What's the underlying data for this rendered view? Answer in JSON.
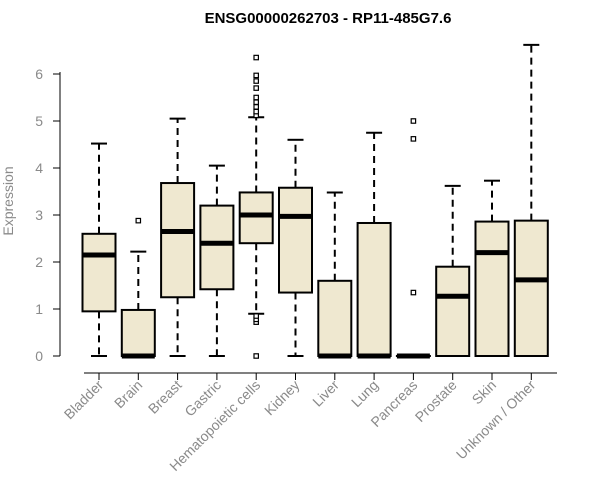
{
  "chart_data": {
    "type": "boxplot",
    "title": "ENSG00000262703 - RP11-485G7.6",
    "xlabel": "",
    "ylabel": "Expression",
    "ylim": [
      0,
      6.8
    ],
    "yticks": [
      0,
      1,
      2,
      3,
      4,
      5,
      6
    ],
    "categories": [
      "Bladder",
      "Brain",
      "Breast",
      "Gastric",
      "Hematopoietic cells",
      "Kidney",
      "Liver",
      "Lung",
      "Pancreas",
      "Prostate",
      "Skin",
      "Unknown / Other"
    ],
    "box_color": "#efe8d0",
    "boxes": [
      {
        "min": 0,
        "q1": 0.95,
        "median": 2.15,
        "q3": 2.6,
        "max": 4.52,
        "outliers": []
      },
      {
        "min": 0,
        "q1": 0,
        "median": 0,
        "q3": 0.98,
        "max": 2.22,
        "outliers": [
          2.88
        ]
      },
      {
        "min": 0,
        "q1": 1.25,
        "median": 2.65,
        "q3": 3.68,
        "max": 5.05,
        "outliers": []
      },
      {
        "min": 0,
        "q1": 1.42,
        "median": 2.4,
        "q3": 3.2,
        "max": 4.05,
        "outliers": []
      },
      {
        "min": 0.9,
        "q1": 2.4,
        "median": 3.0,
        "q3": 3.48,
        "max": 5.08,
        "outliers": [
          0,
          0.72,
          0.78,
          0.85,
          5.12,
          5.2,
          5.3,
          5.4,
          5.5,
          5.7,
          5.85,
          5.97,
          6.35
        ]
      },
      {
        "min": 0,
        "q1": 1.35,
        "median": 2.97,
        "q3": 3.58,
        "max": 4.6,
        "outliers": []
      },
      {
        "min": 0,
        "q1": 0,
        "median": 0,
        "q3": 1.6,
        "max": 3.48,
        "outliers": []
      },
      {
        "min": 0,
        "q1": 0,
        "median": 0,
        "q3": 2.83,
        "max": 4.75,
        "outliers": []
      },
      {
        "min": 0,
        "q1": 0,
        "median": 0,
        "q3": 0,
        "max": 0,
        "outliers": [
          1.35,
          4.62,
          5.0
        ]
      },
      {
        "min": 0,
        "q1": 0,
        "median": 1.27,
        "q3": 1.9,
        "max": 3.62,
        "outliers": []
      },
      {
        "min": 0,
        "q1": 0,
        "median": 2.2,
        "q3": 2.86,
        "max": 3.73,
        "outliers": []
      },
      {
        "min": 0,
        "q1": 0,
        "median": 1.62,
        "q3": 2.88,
        "max": 6.62,
        "outliers": []
      }
    ]
  }
}
